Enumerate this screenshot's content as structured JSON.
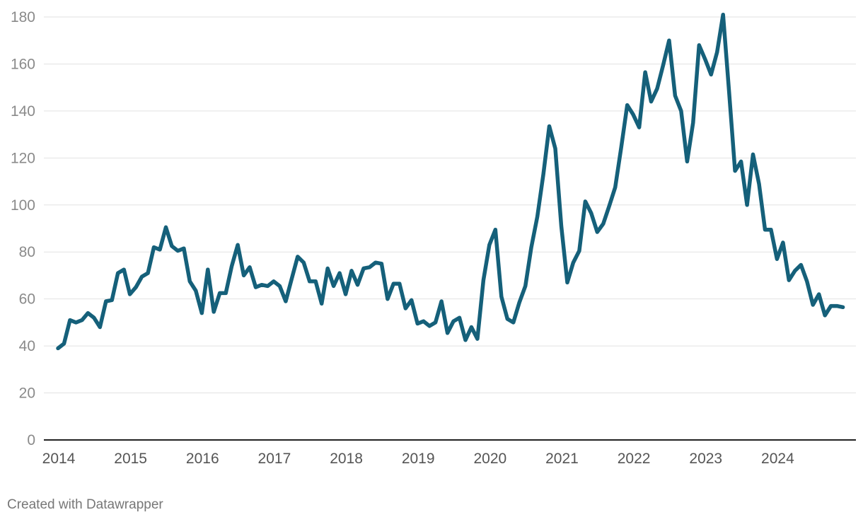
{
  "credit": "Created with Datawrapper",
  "chart_data": {
    "type": "line",
    "x_start": "2014-01",
    "x_step": "month",
    "x_tick_labels": [
      "2014",
      "2015",
      "2016",
      "2017",
      "2018",
      "2019",
      "2020",
      "2021",
      "2022",
      "2023",
      "2024"
    ],
    "y_tick_labels": [
      "0",
      "20",
      "40",
      "60",
      "80",
      "100",
      "120",
      "140",
      "160",
      "180"
    ],
    "ylim": [
      0,
      180
    ],
    "grid": true,
    "colors": {
      "series": "#15607a",
      "grid": "#e2e2e2",
      "axis": "#222222"
    },
    "series": [
      {
        "values": [
          39,
          41,
          51,
          50,
          51,
          54,
          52,
          48,
          59,
          59.5,
          71,
          72.5,
          62,
          65,
          69.5,
          71,
          82,
          81,
          90.5,
          82.5,
          80.5,
          81.5,
          67.5,
          63.5,
          54,
          72.5,
          54.5,
          62.5,
          62.5,
          74,
          83,
          70,
          73.5,
          65,
          66,
          65.5,
          67.5,
          65.5,
          59,
          68.5,
          78,
          75.5,
          67.5,
          67.5,
          58,
          73,
          65.5,
          71,
          62,
          72,
          66,
          73,
          73.5,
          75.5,
          75,
          60,
          66.5,
          66.5,
          56,
          59.5,
          49.5,
          50.5,
          48.5,
          50,
          59,
          45.5,
          50.5,
          52,
          42.5,
          48,
          43,
          68,
          83,
          89.5,
          61,
          51.5,
          50,
          58.5,
          65.5,
          82,
          95,
          113,
          133.5,
          124,
          91,
          67,
          75.5,
          80.5,
          101.5,
          96.5,
          88.5,
          92,
          99.5,
          107.5,
          124.5,
          142.5,
          138.5,
          133,
          156.5,
          144,
          149.5,
          159.5,
          170,
          146.5,
          140,
          118.5,
          135,
          168,
          162,
          155.5,
          165,
          181,
          148.5,
          114.5,
          118.5,
          100,
          121.5,
          109,
          89.5,
          89.5,
          77,
          84,
          68,
          72,
          74.5,
          67.5,
          57.5,
          62,
          53,
          57,
          57,
          56.5
        ]
      }
    ]
  }
}
